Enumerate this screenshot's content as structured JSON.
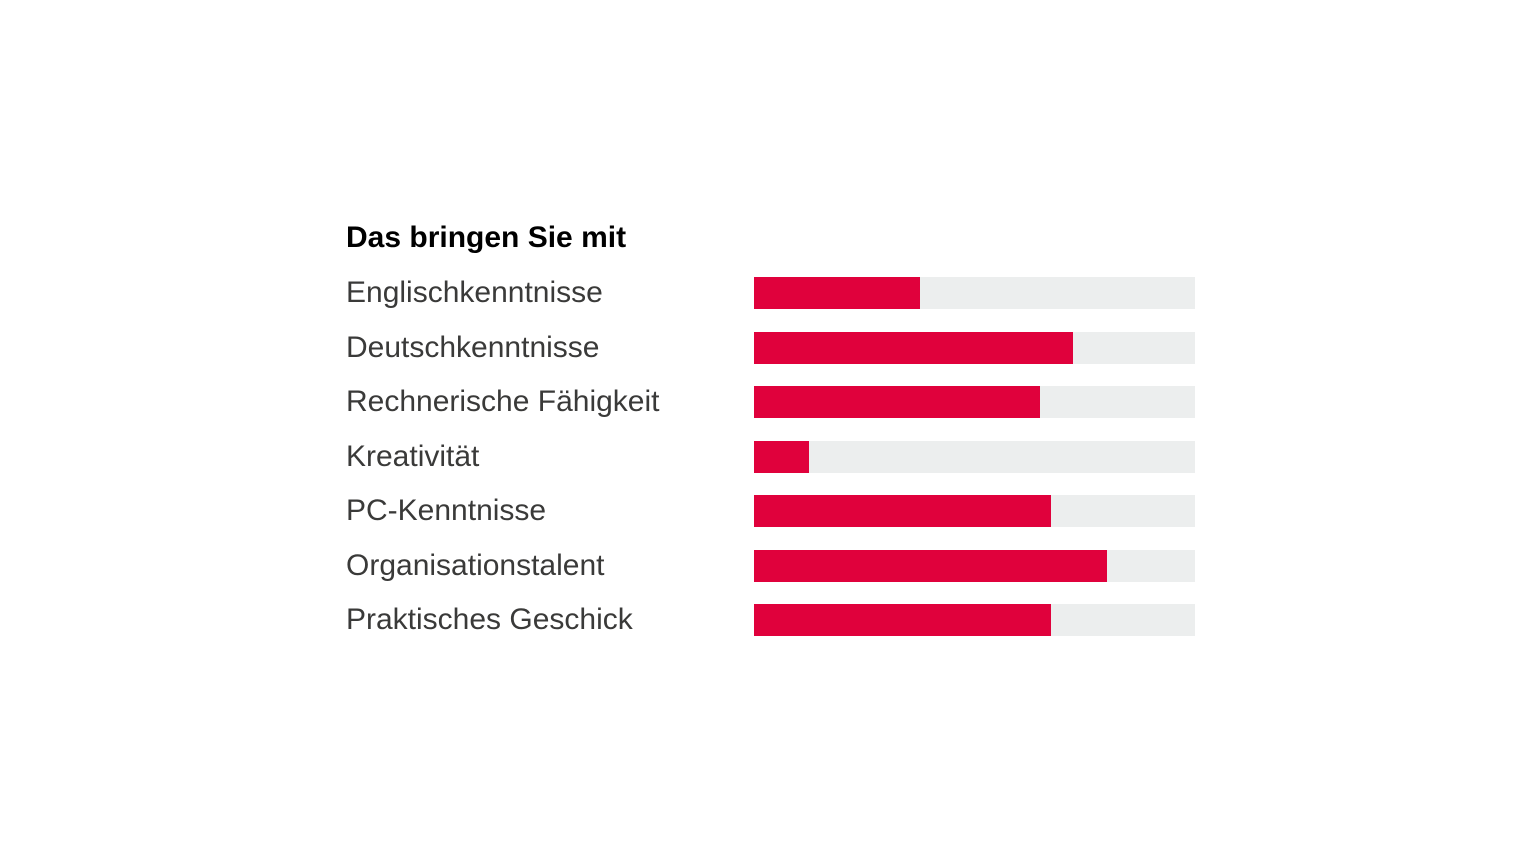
{
  "chart_data": {
    "type": "bar",
    "orientation": "horizontal",
    "title": "Das bringen Sie mit",
    "categories": [
      "Englischkenntnisse",
      "Deutschkenntnisse",
      "Rechnerische Fähigkeit",
      "Kreativität",
      "PC-Kenntnisse",
      "Organisationstalent",
      "Praktisches Geschick"
    ],
    "values": [
      37.6,
      72.3,
      64.9,
      12.5,
      67.3,
      80.0,
      67.3
    ],
    "value_unit": "percent_of_full_track",
    "xlim": [
      0,
      100
    ],
    "grid": false,
    "legend": false,
    "axis_ticks": false,
    "bar_color": "#e0013c",
    "track_color": "#eceeee",
    "title_color": "#000000",
    "label_color": "#3a3a39"
  }
}
